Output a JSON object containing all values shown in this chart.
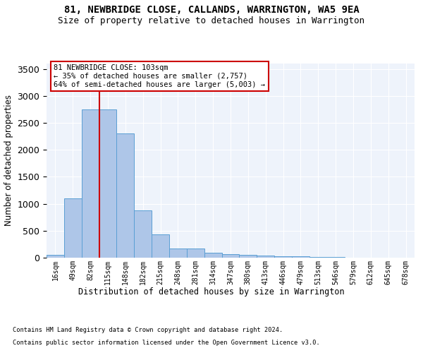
{
  "title": "81, NEWBRIDGE CLOSE, CALLANDS, WARRINGTON, WA5 9EA",
  "subtitle": "Size of property relative to detached houses in Warrington",
  "xlabel": "Distribution of detached houses by size in Warrington",
  "ylabel": "Number of detached properties",
  "bar_color": "#aec6e8",
  "bar_edge_color": "#5a9fd4",
  "bin_labels": [
    "16sqm",
    "49sqm",
    "82sqm",
    "115sqm",
    "148sqm",
    "182sqm",
    "215sqm",
    "248sqm",
    "281sqm",
    "314sqm",
    "347sqm",
    "380sqm",
    "413sqm",
    "446sqm",
    "479sqm",
    "513sqm",
    "546sqm",
    "579sqm",
    "612sqm",
    "645sqm",
    "678sqm"
  ],
  "values": [
    50,
    1100,
    2750,
    2750,
    2300,
    880,
    430,
    170,
    170,
    90,
    65,
    55,
    40,
    30,
    25,
    10,
    10,
    5,
    5,
    5,
    5
  ],
  "ylim": [
    0,
    3600
  ],
  "yticks": [
    0,
    500,
    1000,
    1500,
    2000,
    2500,
    3000,
    3500
  ],
  "property_line_x": 2.53,
  "annotation_text": "81 NEWBRIDGE CLOSE: 103sqm\n← 35% of detached houses are smaller (2,757)\n64% of semi-detached houses are larger (5,003) →",
  "annotation_box_color": "#ffffff",
  "annotation_box_edge_color": "#cc0000",
  "footnote1": "Contains HM Land Registry data © Crown copyright and database right 2024.",
  "footnote2": "Contains public sector information licensed under the Open Government Licence v3.0.",
  "background_color": "#eef3fb",
  "grid_color": "#ffffff",
  "fig_bg_color": "#ffffff"
}
